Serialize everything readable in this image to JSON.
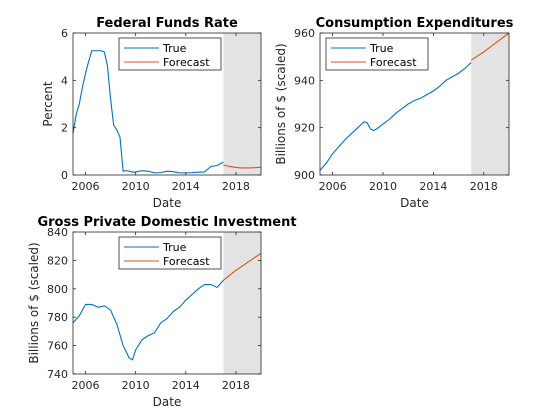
{
  "chart_data": [
    {
      "type": "line",
      "title": "Federal Funds Rate",
      "xlabel": "Date",
      "ylabel": "Percent",
      "xlim": [
        2005.0,
        2020.0
      ],
      "ylim": [
        0,
        6
      ],
      "xticks": [
        2006,
        2010,
        2014,
        2018
      ],
      "yticks": [
        0,
        2,
        4,
        6
      ],
      "shaded_region": [
        2017.0,
        2020.0
      ],
      "legend": "top-right",
      "series": [
        {
          "name": "True",
          "color": "#0072bd",
          "x": [
            2005.0,
            2005.25,
            2005.5,
            2005.75,
            2006.0,
            2006.25,
            2006.5,
            2006.75,
            2007.0,
            2007.25,
            2007.5,
            2007.75,
            2008.0,
            2008.25,
            2008.5,
            2008.75,
            2009.0,
            2009.25,
            2009.5,
            2009.75,
            2010.0,
            2010.5,
            2011.0,
            2011.5,
            2012.0,
            2012.5,
            2013.0,
            2013.5,
            2014.0,
            2014.5,
            2015.0,
            2015.5,
            2016.0,
            2016.5,
            2017.0
          ],
          "y": [
            1.75,
            2.55,
            3.0,
            3.7,
            4.3,
            4.8,
            5.25,
            5.25,
            5.25,
            5.25,
            5.2,
            4.6,
            3.2,
            2.1,
            1.9,
            1.6,
            0.16,
            0.18,
            0.16,
            0.12,
            0.13,
            0.18,
            0.16,
            0.09,
            0.1,
            0.16,
            0.14,
            0.09,
            0.09,
            0.1,
            0.12,
            0.13,
            0.36,
            0.4,
            0.55
          ]
        },
        {
          "name": "Forecast",
          "color": "#d95319",
          "x": [
            2017.0,
            2017.5,
            2018.0,
            2018.5,
            2019.0,
            2019.5,
            2020.0
          ],
          "y": [
            0.42,
            0.36,
            0.32,
            0.3,
            0.3,
            0.31,
            0.33
          ]
        }
      ]
    },
    {
      "type": "line",
      "title": "Consumption Expenditures",
      "xlabel": "Date",
      "ylabel": "Billions of $ (scaled)",
      "xlim": [
        2005.0,
        2020.0
      ],
      "ylim": [
        900,
        960
      ],
      "xticks": [
        2006,
        2010,
        2014,
        2018
      ],
      "yticks": [
        900,
        920,
        940,
        960
      ],
      "shaded_region": [
        2017.0,
        2020.0
      ],
      "legend": "top-left",
      "series": [
        {
          "name": "True",
          "color": "#0072bd",
          "x": [
            2005.0,
            2005.5,
            2006.0,
            2006.5,
            2007.0,
            2007.5,
            2008.0,
            2008.5,
            2008.75,
            2009.0,
            2009.25,
            2009.5,
            2010.0,
            2010.5,
            2011.0,
            2011.5,
            2012.0,
            2012.5,
            2013.0,
            2013.5,
            2014.0,
            2014.5,
            2015.0,
            2015.5,
            2016.0,
            2016.5,
            2017.0
          ],
          "y": [
            902.0,
            905.0,
            909.0,
            912.0,
            915.0,
            917.5,
            920.0,
            922.5,
            922.0,
            919.5,
            918.8,
            919.5,
            921.5,
            923.5,
            926.0,
            928.0,
            930.0,
            931.5,
            932.5,
            934.0,
            935.5,
            937.5,
            940.0,
            941.5,
            943.0,
            945.0,
            947.5
          ]
        },
        {
          "name": "Forecast",
          "color": "#d95319",
          "x": [
            2017.0,
            2018.0,
            2019.0,
            2020.0
          ],
          "y": [
            948.5,
            952.0,
            956.0,
            960.0
          ]
        }
      ]
    },
    {
      "type": "line",
      "title": "Gross Private Domestic Investment",
      "xlabel": "Date",
      "ylabel": "Billions of $ (scaled)",
      "xlim": [
        2005.0,
        2020.0
      ],
      "ylim": [
        740,
        840
      ],
      "xticks": [
        2006,
        2010,
        2014,
        2018
      ],
      "yticks": [
        740,
        760,
        780,
        800,
        820,
        840
      ],
      "shaded_region": [
        2017.0,
        2020.0
      ],
      "legend": "top-right",
      "series": [
        {
          "name": "True",
          "color": "#0072bd",
          "x": [
            2005.0,
            2005.5,
            2006.0,
            2006.5,
            2007.0,
            2007.5,
            2008.0,
            2008.5,
            2009.0,
            2009.5,
            2009.75,
            2010.0,
            2010.5,
            2011.0,
            2011.5,
            2012.0,
            2012.5,
            2013.0,
            2013.5,
            2014.0,
            2014.5,
            2015.0,
            2015.5,
            2016.0,
            2016.5,
            2017.0
          ],
          "y": [
            776.0,
            781.0,
            789.0,
            789.0,
            787.0,
            788.0,
            785.0,
            775.0,
            760.0,
            751.0,
            750.0,
            757.0,
            764.0,
            767.0,
            769.0,
            776.0,
            779.0,
            784.0,
            787.0,
            792.0,
            796.0,
            800.0,
            803.0,
            803.0,
            801.0,
            806.0
          ]
        },
        {
          "name": "Forecast",
          "color": "#d95319",
          "x": [
            2017.0,
            2018.0,
            2019.0,
            2020.0
          ],
          "y": [
            806.0,
            813.0,
            819.0,
            825.0
          ]
        }
      ]
    }
  ]
}
